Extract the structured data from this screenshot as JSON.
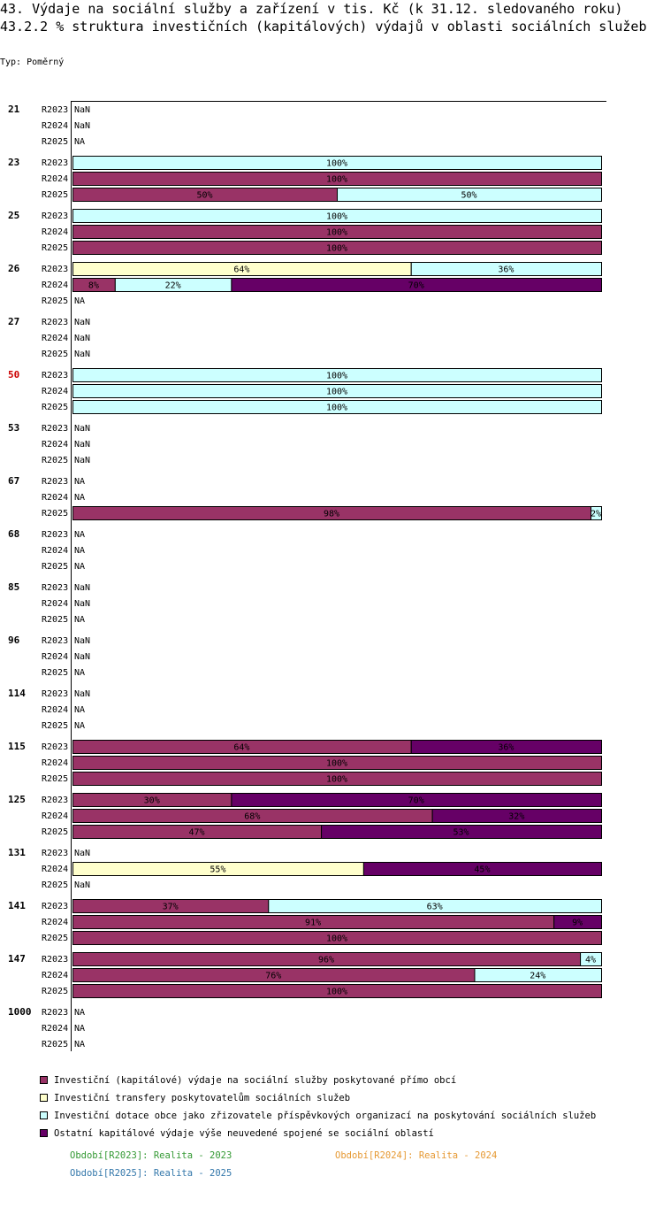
{
  "header": {
    "title": "43. Výdaje na sociální služby a zařízení v tis. Kč (k 31.12. sledovaného roku)",
    "subtitle": "43.2.2 % struktura investičních (kapitálových) výdajů v oblasti sociálních služeb",
    "type_label": "Typ: Poměrný"
  },
  "chart_data": {
    "type": "bar",
    "orientation": "horizontal-stacked-percent",
    "title": "43.2.2 % struktura investičních (kapitálových) výdajů v oblasti sociálních služeb",
    "xlim": [
      0,
      100
    ],
    "series": [
      {
        "name": "Investiční (kapitálové) výdaje na sociální služby poskytované přímo obcí",
        "color": "#993366"
      },
      {
        "name": "Investiční transfery poskytovatelům sociálních služeb",
        "color": "#ffffcc"
      },
      {
        "name": "Investiční dotace obce jako zřizovatele příspěvkových organizací na poskytování sociálních služeb",
        "color": "#ccffff"
      },
      {
        "name": "Ostatní kapitálové výdaje výše neuvedené spojené se sociální oblastí",
        "color": "#660066"
      }
    ],
    "groups": [
      {
        "label": "21",
        "highlight": false,
        "rows": [
          {
            "period": "R2023",
            "text": "NaN"
          },
          {
            "period": "R2024",
            "text": "NaN"
          },
          {
            "period": "R2025",
            "text": "NA"
          }
        ]
      },
      {
        "label": "23",
        "highlight": false,
        "rows": [
          {
            "period": "R2023",
            "values": [
              0,
              0,
              100,
              0
            ],
            "labels": [
              "",
              "",
              "100%",
              ""
            ]
          },
          {
            "period": "R2024",
            "values": [
              100,
              0,
              0,
              0
            ],
            "labels": [
              "100%",
              "",
              "",
              ""
            ]
          },
          {
            "period": "R2025",
            "values": [
              50,
              0,
              50,
              0
            ],
            "labels": [
              "50%",
              "",
              "50%",
              ""
            ]
          }
        ]
      },
      {
        "label": "25",
        "highlight": false,
        "rows": [
          {
            "period": "R2023",
            "values": [
              0,
              0,
              100,
              0
            ],
            "labels": [
              "",
              "",
              "100%",
              ""
            ]
          },
          {
            "period": "R2024",
            "values": [
              100,
              0,
              0,
              0
            ],
            "labels": [
              "100%",
              "",
              "",
              ""
            ]
          },
          {
            "period": "R2025",
            "values": [
              100,
              0,
              0,
              0
            ],
            "labels": [
              "100%",
              "",
              "",
              ""
            ]
          }
        ]
      },
      {
        "label": "26",
        "highlight": false,
        "rows": [
          {
            "period": "R2023",
            "values": [
              0,
              64,
              36,
              0
            ],
            "labels": [
              "",
              "64%",
              "36%",
              ""
            ]
          },
          {
            "period": "R2024",
            "values": [
              8,
              0,
              22,
              70
            ],
            "labels": [
              "8%",
              "",
              "22%",
              "70%"
            ]
          },
          {
            "period": "R2025",
            "text": "NA"
          }
        ]
      },
      {
        "label": "27",
        "highlight": false,
        "rows": [
          {
            "period": "R2023",
            "text": "NaN"
          },
          {
            "period": "R2024",
            "text": "NaN"
          },
          {
            "period": "R2025",
            "text": "NaN"
          }
        ]
      },
      {
        "label": "50",
        "highlight": true,
        "rows": [
          {
            "period": "R2023",
            "values": [
              0,
              0,
              100,
              0
            ],
            "labels": [
              "",
              "",
              "100%",
              ""
            ]
          },
          {
            "period": "R2024",
            "values": [
              0,
              0,
              100,
              0
            ],
            "labels": [
              "",
              "",
              "100%",
              ""
            ]
          },
          {
            "period": "R2025",
            "values": [
              0,
              0,
              100,
              0
            ],
            "labels": [
              "",
              "",
              "100%",
              ""
            ]
          }
        ]
      },
      {
        "label": "53",
        "highlight": false,
        "rows": [
          {
            "period": "R2023",
            "text": "NaN"
          },
          {
            "period": "R2024",
            "text": "NaN"
          },
          {
            "period": "R2025",
            "text": "NaN"
          }
        ]
      },
      {
        "label": "67",
        "highlight": false,
        "rows": [
          {
            "period": "R2023",
            "text": "NA"
          },
          {
            "period": "R2024",
            "text": "NA"
          },
          {
            "period": "R2025",
            "values": [
              98,
              0,
              2,
              0
            ],
            "labels": [
              "98%",
              "",
              "2%",
              ""
            ]
          }
        ]
      },
      {
        "label": "68",
        "highlight": false,
        "rows": [
          {
            "period": "R2023",
            "text": "NA"
          },
          {
            "period": "R2024",
            "text": "NA"
          },
          {
            "period": "R2025",
            "text": "NA"
          }
        ]
      },
      {
        "label": "85",
        "highlight": false,
        "rows": [
          {
            "period": "R2023",
            "text": "NaN"
          },
          {
            "period": "R2024",
            "text": "NaN"
          },
          {
            "period": "R2025",
            "text": "NA"
          }
        ]
      },
      {
        "label": "96",
        "highlight": false,
        "rows": [
          {
            "period": "R2023",
            "text": "NaN"
          },
          {
            "period": "R2024",
            "text": "NaN"
          },
          {
            "period": "R2025",
            "text": "NA"
          }
        ]
      },
      {
        "label": "114",
        "highlight": false,
        "rows": [
          {
            "period": "R2023",
            "text": "NaN"
          },
          {
            "period": "R2024",
            "text": "NA"
          },
          {
            "period": "R2025",
            "text": "NA"
          }
        ]
      },
      {
        "label": "115",
        "highlight": false,
        "rows": [
          {
            "period": "R2023",
            "values": [
              64,
              0,
              0,
              36
            ],
            "labels": [
              "64%",
              "",
              "",
              "36%"
            ]
          },
          {
            "period": "R2024",
            "values": [
              100,
              0,
              0,
              0
            ],
            "labels": [
              "100%",
              "",
              "",
              ""
            ]
          },
          {
            "period": "R2025",
            "values": [
              100,
              0,
              0,
              0
            ],
            "labels": [
              "100%",
              "",
              "",
              ""
            ]
          }
        ]
      },
      {
        "label": "125",
        "highlight": false,
        "rows": [
          {
            "period": "R2023",
            "values": [
              30,
              0,
              0,
              70
            ],
            "labels": [
              "30%",
              "",
              "",
              "70%"
            ]
          },
          {
            "period": "R2024",
            "values": [
              68,
              0,
              0,
              32
            ],
            "labels": [
              "68%",
              "",
              "",
              "32%"
            ]
          },
          {
            "period": "R2025",
            "values": [
              47,
              0,
              0,
              53
            ],
            "labels": [
              "47%",
              "",
              "",
              "53%"
            ]
          }
        ]
      },
      {
        "label": "131",
        "highlight": false,
        "rows": [
          {
            "period": "R2023",
            "text": "NaN"
          },
          {
            "period": "R2024",
            "values": [
              0,
              55,
              0,
              45
            ],
            "labels": [
              "",
              "55%",
              "",
              "45%"
            ]
          },
          {
            "period": "R2025",
            "text": "NaN"
          }
        ]
      },
      {
        "label": "141",
        "highlight": false,
        "rows": [
          {
            "period": "R2023",
            "values": [
              37,
              0,
              63,
              0
            ],
            "labels": [
              "37%",
              "",
              "63%",
              ""
            ]
          },
          {
            "period": "R2024",
            "values": [
              91,
              0,
              0,
              9
            ],
            "labels": [
              "91%",
              "",
              "",
              "9%"
            ]
          },
          {
            "period": "R2025",
            "values": [
              100,
              0,
              0,
              0
            ],
            "labels": [
              "100%",
              "",
              "",
              ""
            ]
          }
        ]
      },
      {
        "label": "147",
        "highlight": false,
        "rows": [
          {
            "period": "R2023",
            "values": [
              96,
              0,
              4,
              0
            ],
            "labels": [
              "96%",
              "",
              "4%",
              ""
            ]
          },
          {
            "period": "R2024",
            "values": [
              76,
              0,
              24,
              0
            ],
            "labels": [
              "76%",
              "",
              "24%",
              ""
            ]
          },
          {
            "period": "R2025",
            "values": [
              100,
              0,
              0,
              0
            ],
            "labels": [
              "100%",
              "",
              "",
              ""
            ]
          }
        ]
      },
      {
        "label": "1000",
        "highlight": false,
        "rows": [
          {
            "period": "R2023",
            "text": "NA"
          },
          {
            "period": "R2024",
            "text": "NA"
          },
          {
            "period": "R2025",
            "text": "NA"
          }
        ]
      }
    ],
    "periods": [
      {
        "text": "Období[R2023]: Realita - 2023",
        "color": "#339933"
      },
      {
        "text": "Období[R2024]: Realita - 2024",
        "color": "#e69933"
      },
      {
        "text": "Období[R2025]: Realita - 2025",
        "color": "#3377aa"
      }
    ]
  }
}
